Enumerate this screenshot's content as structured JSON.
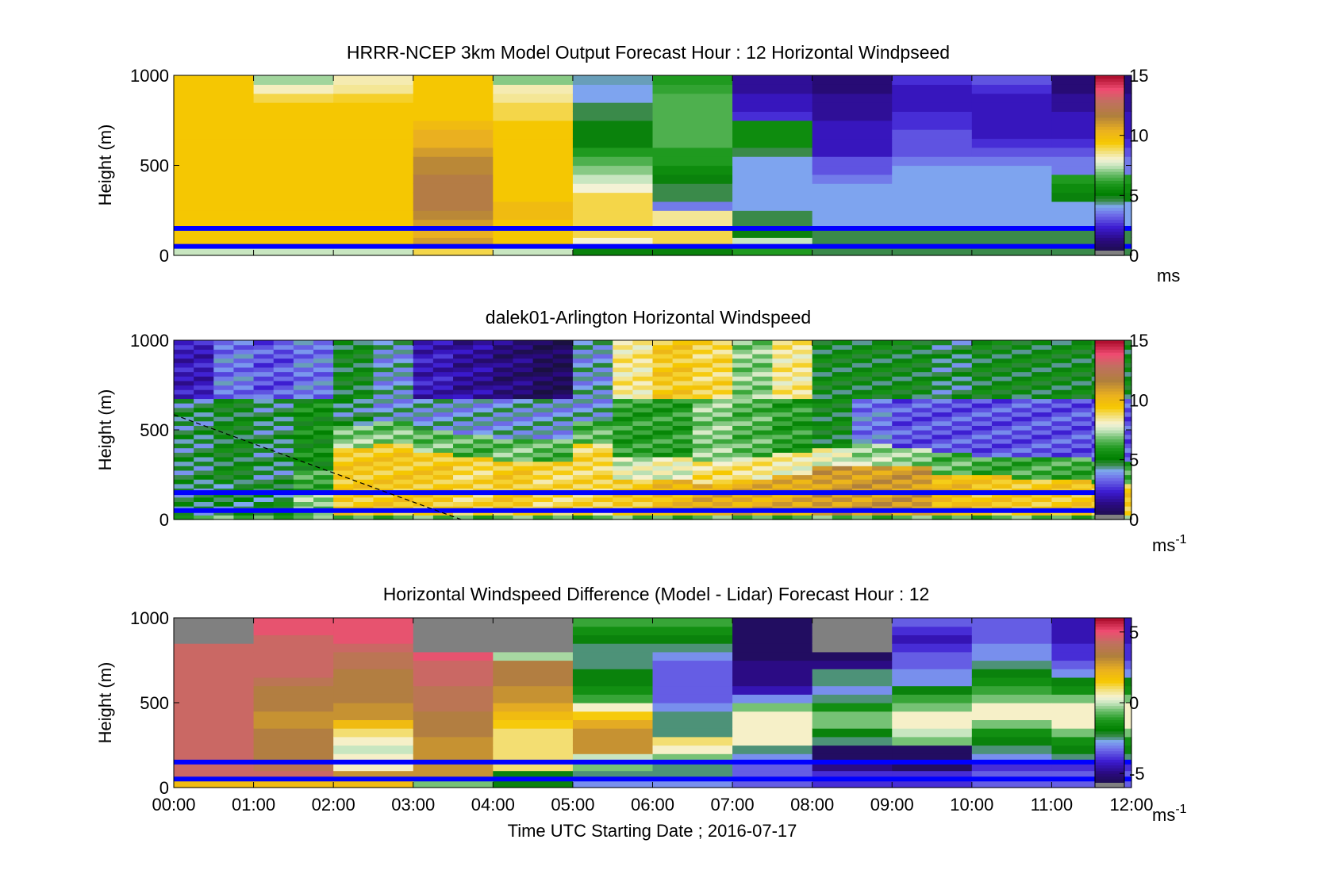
{
  "chart_data": [
    {
      "type": "heatmap",
      "title": "HRRR-NCEP 3km Model Output   Forecast Hour : 12 Horizontal Windpseed",
      "ylabel": "Height (m)",
      "ylim": [
        0,
        1000
      ],
      "yticks": [
        "0",
        "500",
        "1000"
      ],
      "colorbar": {
        "label": "ms",
        "ticks": [
          0,
          5,
          10,
          15
        ],
        "tick_labels": [
          "0",
          "5",
          "10",
          "15"
        ],
        "range": [
          0,
          15
        ]
      },
      "x_range_hours": [
        0,
        12
      ],
      "hour_columns": [
        0,
        1,
        2,
        3,
        4,
        5,
        6,
        7,
        8,
        9,
        10,
        11
      ],
      "height_levels_m": [
        25,
        75,
        125,
        175,
        225,
        275,
        325,
        375,
        425,
        475,
        525,
        575,
        625,
        675,
        725,
        775,
        825,
        875,
        925,
        975
      ],
      "values": [
        [
          7.5,
          9.5,
          9.5,
          9.5,
          9.5,
          9.5,
          9.5,
          9.5,
          9.5,
          9.5,
          9.5,
          9.5,
          9.5,
          9.5,
          9.5,
          9.5,
          9.5,
          9.5,
          9.5,
          9.5
        ],
        [
          7.5,
          9.5,
          9.5,
          9.5,
          9.5,
          9.5,
          9.5,
          9.5,
          9.5,
          9.5,
          9.5,
          9.5,
          9.5,
          9.5,
          9.5,
          9.5,
          9.5,
          9.0,
          8.2,
          7.2
        ],
        [
          7.5,
          9.5,
          9.5,
          9.5,
          9.5,
          9.5,
          9.5,
          9.5,
          9.5,
          9.5,
          9.5,
          9.5,
          9.5,
          9.5,
          9.5,
          9.5,
          9.5,
          9.2,
          8.5,
          8.3
        ],
        [
          9.0,
          11.0,
          10.5,
          11.0,
          11.5,
          12.0,
          12.0,
          12.0,
          12.0,
          11.5,
          11.5,
          11.0,
          10.5,
          10.5,
          10.0,
          9.5,
          9.5,
          9.5,
          9.5,
          9.5
        ],
        [
          7.5,
          9.5,
          9.5,
          9.5,
          10.0,
          10.0,
          9.5,
          9.5,
          9.5,
          9.5,
          9.5,
          9.5,
          9.5,
          9.5,
          9.5,
          9.0,
          9.0,
          8.5,
          8.3,
          7.0
        ],
        [
          5.0,
          8.0,
          9.0,
          9.0,
          9.0,
          9.0,
          9.0,
          8.0,
          7.5,
          7.0,
          6.5,
          6.0,
          5.0,
          5.0,
          5.0,
          4.5,
          4.5,
          4.0,
          4.0,
          4.2
        ],
        [
          5.0,
          9.0,
          9.0,
          8.5,
          8.5,
          3.5,
          4.5,
          4.5,
          5.0,
          5.5,
          6.0,
          6.0,
          6.5,
          6.5,
          6.5,
          6.5,
          6.5,
          6.5,
          6.2,
          6.0
        ],
        [
          6.0,
          7.5,
          5.0,
          4.5,
          4.5,
          4.0,
          4.0,
          4.0,
          4.0,
          4.0,
          4.0,
          4.5,
          5.5,
          5.5,
          5.5,
          2.5,
          2.0,
          2.0,
          1.5,
          1.5
        ],
        [
          4.5,
          4.5,
          4.5,
          4.0,
          4.0,
          4.0,
          4.0,
          4.0,
          3.5,
          3.0,
          3.0,
          2.0,
          2.0,
          2.0,
          2.0,
          1.5,
          1.5,
          1.5,
          1.0,
          1.0
        ],
        [
          4.5,
          4.5,
          4.5,
          4.0,
          4.0,
          4.0,
          4.0,
          4.0,
          4.0,
          4.0,
          3.5,
          3.0,
          3.0,
          3.0,
          2.5,
          2.5,
          2.0,
          2.0,
          2.0,
          2.5
        ],
        [
          4.5,
          4.5,
          4.5,
          4.0,
          4.0,
          4.0,
          4.0,
          4.0,
          4.0,
          4.0,
          3.5,
          3.0,
          2.5,
          2.0,
          2.0,
          2.0,
          2.0,
          2.0,
          2.5,
          3.0
        ],
        [
          4.5,
          4.5,
          4.5,
          4.0,
          4.0,
          4.0,
          5.0,
          5.5,
          6.0,
          3.5,
          3.5,
          3.0,
          2.5,
          2.0,
          2.0,
          2.0,
          1.5,
          1.5,
          1.0,
          1.0
        ]
      ],
      "horizontal_lines_m": [
        50,
        150
      ]
    },
    {
      "type": "heatmap",
      "title": "dalek01-Arlington  Horizontal Windspeed",
      "ylabel": "Height (m)",
      "ylim": [
        0,
        1000
      ],
      "yticks": [
        "0",
        "500",
        "1000"
      ],
      "colorbar": {
        "label": "ms",
        "label_sup": "-1",
        "ticks": [
          0,
          5,
          10,
          15
        ],
        "tick_labels": [
          "0",
          "5",
          "10",
          "15"
        ],
        "range": [
          0,
          15
        ]
      },
      "x_range_hours": [
        0,
        12
      ],
      "data_end_hours": 11.85,
      "description_profiles": {
        "hours": [
          0.0,
          0.5,
          1.0,
          1.5,
          2.0,
          2.5,
          3.0,
          3.5,
          4.0,
          4.5,
          5.0,
          5.5,
          6.0,
          6.5,
          7.0,
          7.5,
          8.0,
          8.5,
          9.0,
          9.5,
          10.0,
          10.5,
          11.0,
          11.5
        ],
        "low_jet_top_m": [
          70,
          80,
          90,
          150,
          400,
          420,
          380,
          350,
          330,
          330,
          420,
          230,
          220,
          210,
          230,
          250,
          290,
          300,
          290,
          260,
          240,
          230,
          220,
          210
        ],
        "low_jet_speed": [
          4.5,
          4.5,
          5.0,
          7.0,
          9.5,
          9.5,
          9.5,
          9.0,
          9.5,
          9.0,
          9.0,
          9.5,
          10.0,
          10.5,
          10.5,
          10.5,
          11.0,
          11.0,
          11.0,
          10.0,
          9.5,
          9.5,
          9.5,
          9.5
        ],
        "mid_layer_speed": [
          4.5,
          5.0,
          4.5,
          5.5,
          4.5,
          4.0,
          4.0,
          4.0,
          4.0,
          4.0,
          4.0,
          6.0,
          6.0,
          7.0,
          6.5,
          6.0,
          5.0,
          3.5,
          3.0,
          3.0,
          3.0,
          3.0,
          3.0,
          3.0
        ],
        "upper_speed": [
          2.0,
          3.5,
          3.0,
          3.5,
          5.0,
          4.0,
          2.0,
          1.5,
          1.0,
          0.5,
          4.0,
          8.5,
          9.5,
          9.0,
          7.0,
          8.5,
          5.0,
          5.0,
          5.0,
          4.5,
          5.0,
          5.0,
          5.0,
          5.0
        ]
      },
      "horizontal_lines_m": [
        50,
        150
      ],
      "dashed_line": {
        "from": {
          "hour": 0.0,
          "height_m": 585
        },
        "to": {
          "hour": 3.6,
          "height_m": 0
        }
      }
    },
    {
      "type": "heatmap",
      "title": "Horizontal Windspeed Difference (Model - Lidar) Forecast Hour : 12",
      "ylabel": "Height (m)",
      "ylim": [
        0,
        1000
      ],
      "yticks": [
        "0",
        "500",
        "1000"
      ],
      "xlabel": "Time UTC  Starting Date ; 2016-07-17",
      "xticks": [
        "00:00",
        "01:00",
        "02:00",
        "03:00",
        "04:00",
        "05:00",
        "06:00",
        "07:00",
        "08:00",
        "09:00",
        "10:00",
        "11:00",
        "12:00"
      ],
      "colorbar": {
        "label": "ms",
        "label_sup": "-1",
        "ticks": [
          -5,
          0,
          5
        ],
        "tick_labels": [
          "-5",
          "0",
          "5"
        ],
        "range": [
          -6,
          6
        ]
      },
      "hour_columns": [
        0,
        1,
        2,
        3,
        4,
        5,
        6,
        7,
        8,
        9,
        10,
        11
      ],
      "height_levels_m": [
        25,
        75,
        125,
        175,
        225,
        275,
        325,
        375,
        425,
        475,
        525,
        575,
        625,
        675,
        725,
        775,
        825,
        875,
        925,
        975
      ],
      "values": [
        [
          2.0,
          4.5,
          4.5,
          4.5,
          4.5,
          4.5,
          4.5,
          4.5,
          4.5,
          4.5,
          4.5,
          4.5,
          4.5,
          4.5,
          4.5,
          4.5,
          4.5,
          null,
          null,
          null
        ],
        [
          2.0,
          4.5,
          4.0,
          3.5,
          3.5,
          3.5,
          3.5,
          3.0,
          3.0,
          3.5,
          3.5,
          3.5,
          4.0,
          4.5,
          4.5,
          4.5,
          4.5,
          4.5,
          5.0,
          5.0
        ],
        [
          2.0,
          3.0,
          0.5,
          0.5,
          0.0,
          0.5,
          1.0,
          2.0,
          3.0,
          3.0,
          3.5,
          3.5,
          3.5,
          3.5,
          4.0,
          4.0,
          4.5,
          5.0,
          5.0,
          5.0
        ],
        [
          -0.5,
          3.0,
          3.0,
          3.0,
          3.0,
          3.0,
          3.5,
          3.5,
          3.5,
          4.0,
          4.0,
          4.0,
          4.5,
          4.5,
          4.5,
          5.0,
          null,
          null,
          null,
          null
        ],
        [
          -2.0,
          -2.0,
          1.0,
          1.0,
          1.0,
          1.0,
          1.0,
          1.5,
          2.0,
          2.5,
          3.0,
          3.0,
          3.5,
          3.5,
          3.5,
          -0.2,
          null,
          null,
          null,
          null
        ],
        [
          -3.0,
          -2.5,
          -0.5,
          0.0,
          3.0,
          3.0,
          3.0,
          2.5,
          1.5,
          0.5,
          -1.0,
          -1.5,
          -2.0,
          -2.0,
          -2.5,
          -2.5,
          -2.5,
          -2.0,
          -1.5,
          -1.0
        ],
        [
          -3.0,
          -2.5,
          -2.5,
          -0.5,
          0.5,
          1.0,
          -2.5,
          -2.5,
          -2.5,
          -3.0,
          -3.5,
          -3.5,
          -3.5,
          -3.5,
          -3.5,
          -3.0,
          -2.5,
          -2.0,
          -1.5,
          -1.0
        ],
        [
          -3.5,
          -3.5,
          -3.5,
          -3.0,
          -2.5,
          0.5,
          0.5,
          0.5,
          0.5,
          -0.5,
          -3.0,
          -4.5,
          -5.0,
          -5.0,
          -5.0,
          -5.5,
          -5.5,
          -5.5,
          -5.5,
          -5.5
        ],
        [
          -4.0,
          -4.0,
          -5.0,
          -5.5,
          -5.5,
          -2.5,
          -2.0,
          -0.5,
          -0.5,
          -1.5,
          -2.5,
          -3.0,
          -2.5,
          -2.5,
          -5.0,
          -5.5,
          null,
          null,
          null,
          null
        ],
        [
          -4.0,
          -4.0,
          -5.5,
          -5.5,
          -5.5,
          -0.5,
          0.0,
          0.5,
          0.5,
          -0.5,
          -1.0,
          -2.0,
          -3.0,
          -3.0,
          -3.5,
          -3.5,
          -4.0,
          -4.5,
          -4.0,
          -3.5
        ],
        [
          -3.5,
          -3.5,
          -4.0,
          -3.0,
          -2.5,
          -2.0,
          -1.5,
          -0.5,
          0.5,
          0.5,
          -0.5,
          -1.0,
          -1.5,
          -2.0,
          -2.5,
          -3.0,
          -3.0,
          -3.5,
          -3.5,
          -3.5
        ],
        [
          -3.5,
          -3.5,
          -4.0,
          -2.5,
          -2.0,
          -1.5,
          -0.5,
          0.5,
          0.5,
          0.5,
          -0.5,
          -1.5,
          -2.0,
          -3.0,
          -3.5,
          -4.0,
          -4.0,
          -4.5,
          -4.5,
          -4.5
        ]
      ],
      "missing_color": "#808080",
      "horizontal_lines_m": [
        50,
        150
      ]
    }
  ],
  "colors": {
    "overlay_line": "#0000ff",
    "missing": "#808080",
    "axis": "#000000"
  },
  "colormap_stops": [
    {
      "v": 0.0,
      "c": "#1a1040"
    },
    {
      "v": 0.08,
      "c": "#2a0a80"
    },
    {
      "v": 0.15,
      "c": "#3b1ad0"
    },
    {
      "v": 0.22,
      "c": "#6d6ae8"
    },
    {
      "v": 0.27,
      "c": "#7fa8f0"
    },
    {
      "v": 0.3,
      "c": "#3a8a4a"
    },
    {
      "v": 0.34,
      "c": "#008000"
    },
    {
      "v": 0.4,
      "c": "#1f9a1f"
    },
    {
      "v": 0.45,
      "c": "#66bb66"
    },
    {
      "v": 0.5,
      "c": "#c8e6c0"
    },
    {
      "v": 0.535,
      "c": "#f6f3d6"
    },
    {
      "v": 0.58,
      "c": "#f3e07a"
    },
    {
      "v": 0.63,
      "c": "#f6c800"
    },
    {
      "v": 0.7,
      "c": "#eab020"
    },
    {
      "v": 0.78,
      "c": "#b0803c"
    },
    {
      "v": 0.86,
      "c": "#c07060"
    },
    {
      "v": 0.93,
      "c": "#f04c72"
    },
    {
      "v": 1.0,
      "c": "#b01030"
    }
  ]
}
